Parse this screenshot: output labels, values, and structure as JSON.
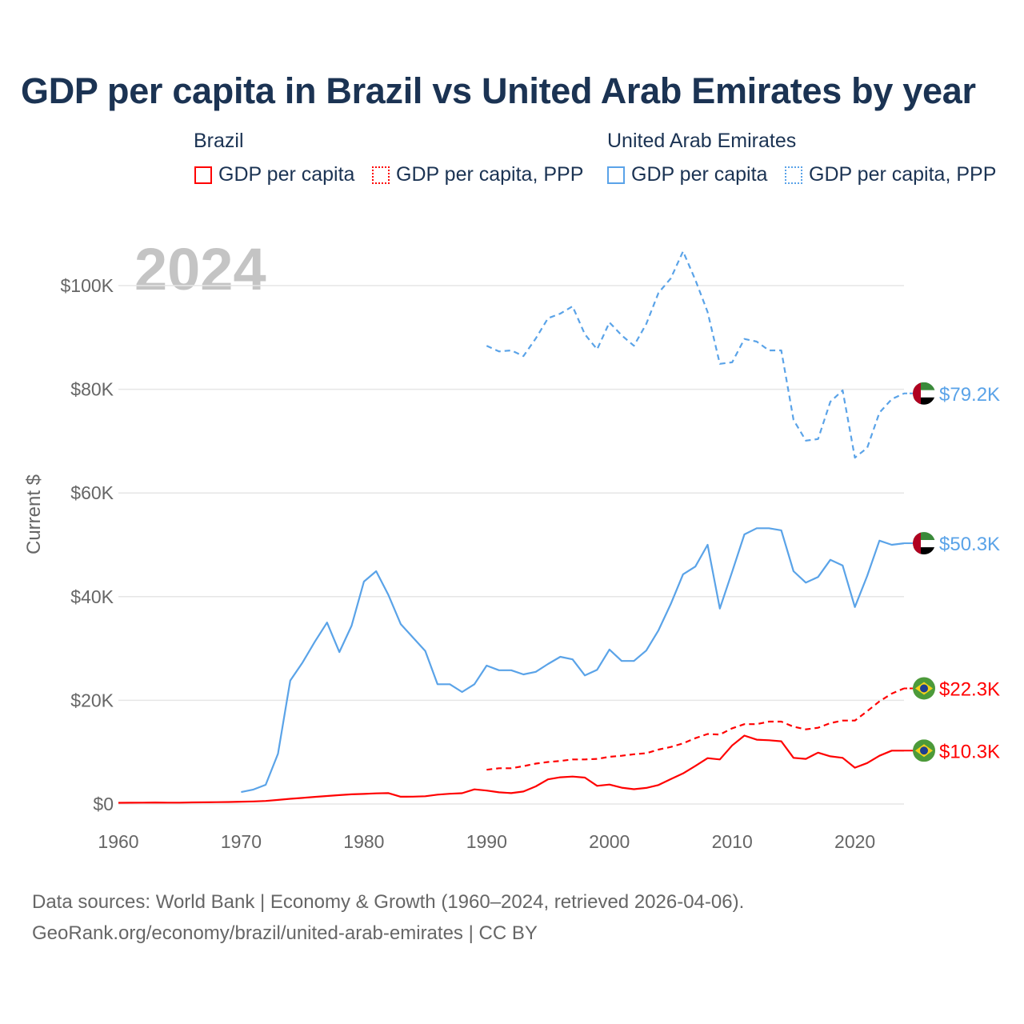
{
  "colors": {
    "brazil": "#ff0000",
    "uae": "#5aa3e8",
    "title": "#1b3353",
    "grid": "#e6e6e6",
    "watermark": "#c4c4c4"
  },
  "legend": {
    "groups": [
      {
        "name": "Brazil",
        "items": [
          "GDP per capita",
          "GDP per capita, PPP"
        ]
      },
      {
        "name": "United Arab Emirates",
        "items": [
          "GDP per capita",
          "GDP per capita, PPP"
        ]
      }
    ]
  },
  "footer": {
    "line1": "Data sources: World Bank | Economy & Growth (1960–2024, retrieved 2026-04-06).",
    "line2": "GeoRank.org/economy/brazil/united-arab-emirates | CC BY"
  },
  "chart_data": {
    "type": "line",
    "title": "GDP per capita in Brazil vs United Arab Emirates by year",
    "watermark_year": "2024",
    "xlabel": "",
    "ylabel": "Current $",
    "xlim": [
      1960,
      2024
    ],
    "ylim": [
      0,
      110000
    ],
    "x_ticks": [
      "1960",
      "1970",
      "1980",
      "1990",
      "2000",
      "2010",
      "2020"
    ],
    "y_ticks": [
      {
        "v": 0,
        "label": "$0"
      },
      {
        "v": 20000,
        "label": "$20K"
      },
      {
        "v": 40000,
        "label": "$40K"
      },
      {
        "v": 60000,
        "label": "$60K"
      },
      {
        "v": 80000,
        "label": "$80K"
      },
      {
        "v": 100000,
        "label": "$100K"
      }
    ],
    "grid": true,
    "series": [
      {
        "name": "United Arab Emirates GDP per capita, PPP",
        "country": "uae",
        "dash": "dashed",
        "start": 1990,
        "end_label": "$79.2K",
        "values": [
          88.4,
          87.3,
          87.5,
          86.4,
          89.8,
          93.7,
          94.6,
          96.0,
          90.6,
          87.7,
          92.9,
          90.4,
          88.4,
          92.6,
          98.6,
          101.4,
          106.6,
          101.1,
          94.9,
          84.9,
          85.2,
          89.7,
          89.2,
          87.5,
          87.5,
          74.1,
          70.1,
          70.4,
          77.6,
          79.8,
          66.8,
          68.7,
          75.5,
          78.1,
          79.2
        ]
      },
      {
        "name": "United Arab Emirates GDP per capita",
        "country": "uae",
        "dash": "solid",
        "start": 1970,
        "end_label": "$50.3K",
        "values": [
          2.3,
          2.8,
          3.7,
          9.7,
          23.8,
          27.3,
          31.3,
          35.0,
          29.3,
          34.4,
          42.9,
          44.9,
          40.3,
          34.7,
          32.1,
          29.5,
          23.1,
          23.1,
          21.6,
          23.1,
          26.7,
          25.8,
          25.8,
          25.0,
          25.5,
          27.0,
          28.4,
          27.9,
          24.8,
          25.9,
          29.8,
          27.6,
          27.6,
          29.6,
          33.5,
          38.6,
          44.3,
          45.8,
          50.0,
          37.7,
          44.8,
          52.0,
          53.2,
          53.2,
          52.8,
          44.9,
          42.7,
          43.8,
          47.1,
          46.0,
          38.0,
          44.0,
          50.8,
          50.0,
          50.3
        ]
      },
      {
        "name": "Brazil GDP per capita, PPP",
        "country": "brazil",
        "dash": "dashed",
        "start": 1990,
        "end_label": "$22.3K",
        "values": [
          6.6,
          6.9,
          6.9,
          7.3,
          7.8,
          8.1,
          8.3,
          8.6,
          8.6,
          8.7,
          9.1,
          9.3,
          9.6,
          9.8,
          10.5,
          11.0,
          11.7,
          12.7,
          13.5,
          13.4,
          14.6,
          15.4,
          15.4,
          15.9,
          15.9,
          14.9,
          14.4,
          14.7,
          15.6,
          16.1,
          16.1,
          17.9,
          19.8,
          21.3,
          22.3
        ]
      },
      {
        "name": "Brazil GDP per capita",
        "country": "brazil",
        "dash": "solid",
        "start": 1960,
        "end_label": "$10.3K",
        "values": [
          0.23,
          0.24,
          0.26,
          0.29,
          0.26,
          0.26,
          0.31,
          0.33,
          0.35,
          0.39,
          0.45,
          0.5,
          0.58,
          0.78,
          1.0,
          1.17,
          1.37,
          1.55,
          1.72,
          1.87,
          1.95,
          2.05,
          2.1,
          1.4,
          1.42,
          1.49,
          1.8,
          1.97,
          2.09,
          2.82,
          2.6,
          2.25,
          2.1,
          2.4,
          3.4,
          4.75,
          5.15,
          5.3,
          5.1,
          3.5,
          3.75,
          3.15,
          2.85,
          3.1,
          3.65,
          4.8,
          5.9,
          7.35,
          8.85,
          8.6,
          11.3,
          13.2,
          12.4,
          12.3,
          12.1,
          8.9,
          8.7,
          9.9,
          9.2,
          8.9,
          7.0,
          7.9,
          9.3,
          10.3,
          10.3
        ]
      }
    ],
    "value_unit": "thousand current US$"
  }
}
